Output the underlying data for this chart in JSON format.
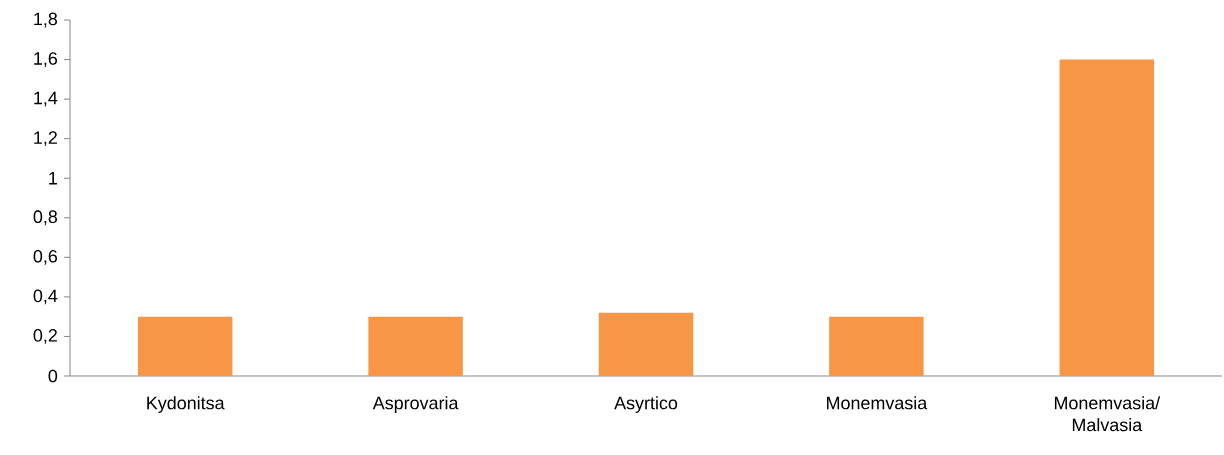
{
  "chart_data": {
    "type": "bar",
    "categories": [
      "Kydonitsa",
      "Asprovaria",
      "Asyrtico",
      "Monemvasia",
      "Monemvasia/ Malvasia"
    ],
    "values": [
      0.3,
      0.3,
      0.32,
      0.3,
      1.6
    ],
    "color": "#f79646",
    "ylim": [
      0,
      1.8
    ],
    "yticks": [
      0,
      {
        "value": 0.2,
        "label": "0,2"
      },
      {
        "value": 0.4,
        "label": "0,4"
      },
      {
        "value": 0.6,
        "label": "0,6"
      },
      {
        "value": 0.8,
        "label": "0,8"
      },
      1,
      {
        "value": 1.2,
        "label": "1,2"
      },
      {
        "value": 1.4,
        "label": "1,4"
      },
      {
        "value": 1.6,
        "label": "1,6"
      },
      {
        "value": 1.8,
        "label": "1,8"
      }
    ],
    "grid": false
  }
}
